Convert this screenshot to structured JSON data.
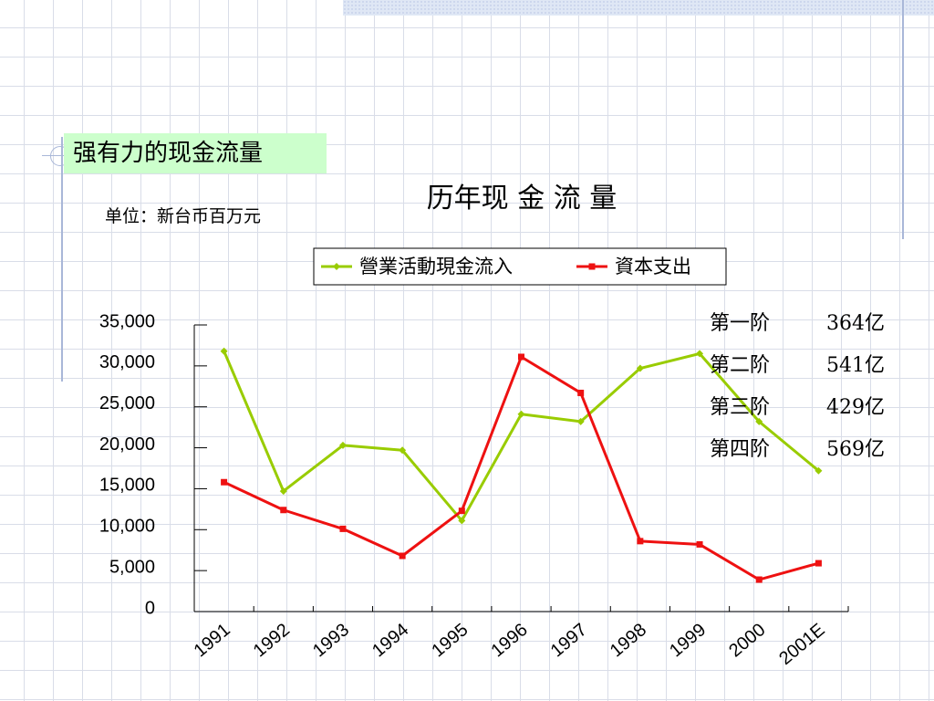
{
  "section_title": "强有力的现金流量",
  "unit_label": "单位：新台币百万元",
  "phases": [
    {
      "name": "第一阶",
      "value": "364亿"
    },
    {
      "name": "第二阶",
      "value": "541亿"
    },
    {
      "name": "第三阶",
      "value": "429亿"
    },
    {
      "name": "第四阶",
      "value": "569亿"
    }
  ],
  "colors": {
    "operating_cash_flow": "#99cc00",
    "capex": "#ee1111",
    "section_bg": "#ccffcc",
    "grid": "#d9dde8",
    "decor_line": "#a9b7d8"
  },
  "chart_data": {
    "type": "line",
    "title": "历年现 金 流 量",
    "categories": [
      "1991",
      "1992",
      "1993",
      "1994",
      "1995",
      "1996",
      "1997",
      "1998",
      "1999",
      "2000",
      "2001E"
    ],
    "series": [
      {
        "name": "營業活動現金流入",
        "color": "#99cc00",
        "values": [
          31800,
          14700,
          20300,
          19700,
          11100,
          24100,
          23200,
          29700,
          31500,
          23200,
          17200
        ]
      },
      {
        "name": "資本支出",
        "color": "#ee1111",
        "values": [
          15800,
          12400,
          10100,
          6800,
          12300,
          31100,
          26700,
          8600,
          8200,
          3900,
          5900
        ]
      }
    ],
    "ylim": [
      0,
      35000
    ],
    "yticks": [
      "35,000",
      "30,000",
      "25,000",
      "20,000",
      "15,000",
      "10,000",
      "5,000",
      "0"
    ],
    "legend": "top",
    "grid": false
  }
}
